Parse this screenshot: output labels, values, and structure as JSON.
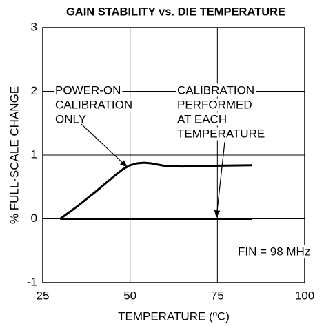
{
  "chart_data": {
    "type": "line",
    "title": "GAIN STABILITY vs. DIE TEMPERATURE",
    "x_label": "TEMPERATURE (ºC)",
    "y_label": "% FULL-SCALE CHANGE",
    "xlim": [
      25,
      100
    ],
    "xticks": [
      25,
      50,
      75,
      100
    ],
    "ylim": [
      -1,
      3
    ],
    "yticks": [
      -1,
      0,
      1,
      2,
      3
    ],
    "grid": true,
    "series": [
      {
        "color": "#000000",
        "x": [
          30,
          35,
          40,
          45,
          48,
          50,
          52,
          54,
          56,
          60,
          65,
          70,
          85
        ],
        "values": [
          0,
          0.2,
          0.42,
          0.65,
          0.78,
          0.84,
          0.87,
          0.88,
          0.87,
          0.83,
          0.82,
          0.83,
          0.84
        ]
      },
      {
        "color": "#000000",
        "x": [
          30,
          85
        ],
        "values": [
          0,
          0
        ]
      }
    ],
    "annotations": [
      [
        "POWER-ON",
        "CALIBRATION",
        "ONLY"
      ],
      [
        "CALIBRATION",
        "PERFORMED",
        "AT EACH",
        "TEMPERATURE"
      ],
      [
        "FIN = 98 MHz"
      ]
    ]
  }
}
